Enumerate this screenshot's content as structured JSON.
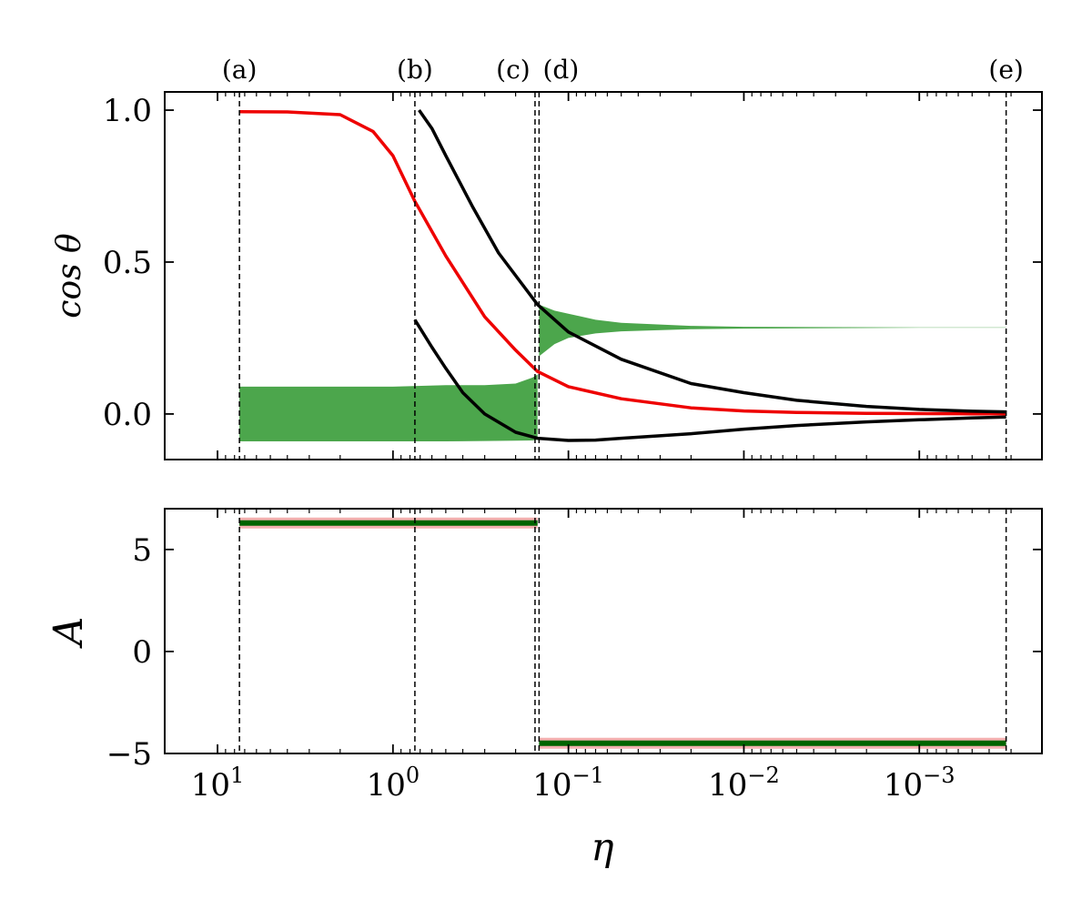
{
  "chart_data": {
    "type": "line",
    "xlabel": "η",
    "xscale": "log",
    "xaxis_reversed": true,
    "xlim": [
      20,
      0.0002
    ],
    "x_tick_labels": [
      {
        "value": 10,
        "base": "10",
        "exp": "1"
      },
      {
        "value": 1,
        "base": "10",
        "exp": "0"
      },
      {
        "value": 0.1,
        "base": "10",
        "exp": "−1"
      },
      {
        "value": 0.01,
        "base": "10",
        "exp": "−2"
      },
      {
        "value": 0.001,
        "base": "10",
        "exp": "−3"
      }
    ],
    "markers": [
      {
        "label": "(a)",
        "x": 7.5
      },
      {
        "label": "(b)",
        "x": 0.75
      },
      {
        "label": "(c)",
        "x": 0.155
      },
      {
        "label": "(d)",
        "x": 0.147
      },
      {
        "label": "(e)",
        "x": 0.00032
      }
    ],
    "panels": [
      {
        "ylabel": "cos θ",
        "ylim": [
          -0.15,
          1.06
        ],
        "yticks": [
          {
            "value": 0.0,
            "label": "0.0"
          },
          {
            "value": 0.5,
            "label": "0.5"
          },
          {
            "value": 1.0,
            "label": "1.0"
          }
        ],
        "series": [
          {
            "color": "#ee0000",
            "x": [
              7.5,
              4,
              2,
              1.3,
              1,
              0.75,
              0.5,
              0.3,
              0.2,
              0.15,
              0.1,
              0.05,
              0.02,
              0.01,
              0.005,
              0.002,
              0.0005,
              0.00032
            ],
            "y": [
              0.995,
              0.994,
              0.985,
              0.93,
              0.85,
              0.7,
              0.52,
              0.32,
              0.21,
              0.14,
              0.09,
              0.05,
              0.02,
              0.01,
              0.005,
              0.002,
              0.0005,
              0.0003
            ]
          },
          {
            "color": "#000000",
            "x": [
              0.71,
              0.6,
              0.5,
              0.35,
              0.25,
              0.15,
              0.1,
              0.05,
              0.02,
              0.01,
              0.005,
              0.002,
              0.001,
              0.0005,
              0.00032
            ],
            "y": [
              1.0,
              0.94,
              0.85,
              0.68,
              0.53,
              0.36,
              0.27,
              0.18,
              0.1,
              0.07,
              0.045,
              0.025,
              0.015,
              0.009,
              0.007
            ]
          },
          {
            "color": "#000000",
            "x": [
              0.75,
              0.6,
              0.5,
              0.4,
              0.3,
              0.2,
              0.15,
              0.1,
              0.07,
              0.05,
              0.02,
              0.01,
              0.005,
              0.002,
              0.001,
              0.0005,
              0.00032
            ],
            "y": [
              0.31,
              0.22,
              0.15,
              0.07,
              0.0,
              -0.06,
              -0.08,
              -0.087,
              -0.086,
              -0.08,
              -0.065,
              -0.05,
              -0.038,
              -0.026,
              -0.019,
              -0.013,
              -0.01
            ]
          }
        ],
        "bands": [
          {
            "color": "#4ca64c",
            "x": [
              7.5,
              1.0,
              0.5,
              0.3,
              0.2,
              0.16,
              0.15
            ],
            "upper": [
              0.09,
              0.09,
              0.095,
              0.095,
              0.1,
              0.12,
              0.13
            ],
            "lower": [
              -0.09,
              -0.09,
              -0.09,
              -0.089,
              -0.088,
              -0.087,
              -0.085
            ]
          },
          {
            "color": "#4ca64c",
            "x": [
              0.147,
              0.12,
              0.1,
              0.07,
              0.05,
              0.02,
              0.01,
              0.001,
              0.00032
            ],
            "upper": [
              0.36,
              0.34,
              0.33,
              0.31,
              0.3,
              0.29,
              0.287,
              0.285,
              0.285
            ],
            "lower": [
              0.19,
              0.23,
              0.25,
              0.265,
              0.272,
              0.279,
              0.281,
              0.284,
              0.284
            ]
          }
        ]
      },
      {
        "ylabel": "A",
        "ylim": [
          -5,
          7
        ],
        "yticks": [
          {
            "value": -5,
            "label": "−5"
          },
          {
            "value": 0,
            "label": "0"
          },
          {
            "value": 5,
            "label": "5"
          }
        ],
        "series": [
          {
            "color": "#006400",
            "halo": "#f4b0b0",
            "x": [
              7.5,
              0.15
            ],
            "y": [
              6.3,
              6.3
            ]
          },
          {
            "color": "#006400",
            "halo": "#f4b0b0",
            "x": [
              0.147,
              0.00032
            ],
            "y": [
              -4.5,
              -4.5
            ]
          }
        ]
      }
    ]
  }
}
